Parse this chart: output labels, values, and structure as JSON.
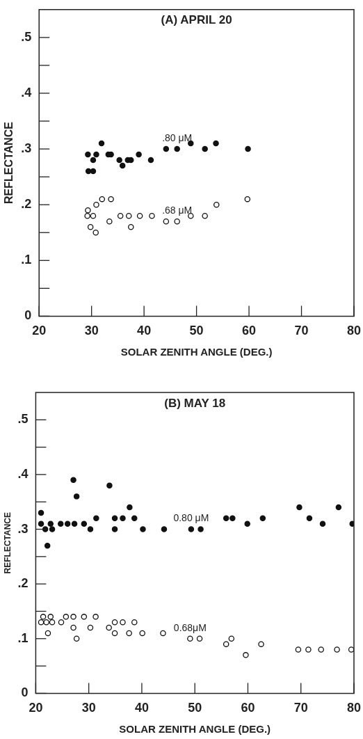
{
  "chart_data": [
    {
      "type": "scatter",
      "title": "(A) APRIL 20",
      "xlabel": "SOLAR ZENITH ANGLE (DEG.)",
      "ylabel": "REFLECTANCE",
      "marker": "circle",
      "grid": false,
      "legend": false,
      "xlim": [
        20,
        80
      ],
      "xticks": [
        20,
        30,
        40,
        50,
        60,
        70,
        80
      ],
      "ylim": [
        0,
        0.55
      ],
      "yticks": [
        0,
        {
          "value": 0.05,
          "label": null
        },
        {
          "value": 0.1,
          "label": ".1"
        },
        {
          "value": 0.15,
          "label": null
        },
        {
          "value": 0.2,
          "label": ".2"
        },
        {
          "value": 0.25,
          "label": null
        },
        {
          "value": 0.3,
          "label": ".3"
        },
        {
          "value": 0.35,
          "label": null
        },
        {
          "value": 0.4,
          "label": ".4"
        },
        {
          "value": 0.45,
          "label": null
        },
        {
          "value": 0.5,
          "label": ".5"
        }
      ],
      "series": [
        {
          "name": ".80 μM",
          "color": "#111111",
          "x": [
            29.3,
            29.4,
            30.3,
            30.3,
            30.9,
            31.9,
            33.2,
            33.7,
            35.3,
            35.9,
            36.9,
            37.5,
            39.0,
            41.3,
            44.2,
            46.3,
            48.9,
            51.6,
            53.7,
            59.8
          ],
          "values": [
            0.29,
            0.26,
            0.26,
            0.28,
            0.29,
            0.31,
            0.29,
            0.29,
            0.28,
            0.27,
            0.28,
            0.28,
            0.29,
            0.28,
            0.3,
            0.3,
            0.31,
            0.3,
            0.31,
            0.3
          ]
        },
        {
          "name": ".68 μM",
          "color": "#ffffff",
          "x": [
            29.3,
            29.2,
            30.3,
            29.8,
            30.8,
            30.9,
            32.0,
            33.7,
            33.4,
            35.5,
            37.1,
            37.5,
            39.2,
            41.5,
            44.2,
            46.3,
            48.9,
            51.6,
            53.8,
            59.7
          ],
          "values": [
            0.19,
            0.18,
            0.18,
            0.16,
            0.15,
            0.2,
            0.21,
            0.21,
            0.17,
            0.18,
            0.18,
            0.16,
            0.18,
            0.18,
            0.17,
            0.17,
            0.18,
            0.18,
            0.2,
            0.21
          ]
        }
      ]
    },
    {
      "type": "scatter",
      "title": "(B) MAY 18",
      "xlabel": "SOLAR ZENITH ANGLE (DEG.)",
      "ylabel": "REFLECTANCE",
      "marker": "circle",
      "grid": false,
      "legend": false,
      "xlim": [
        20,
        80
      ],
      "xticks": [
        20,
        30,
        40,
        50,
        60,
        70,
        80
      ],
      "ylim": [
        0,
        0.55
      ],
      "yticks": [
        0,
        {
          "value": 0.05,
          "label": null
        },
        {
          "value": 0.1,
          "label": ".1"
        },
        {
          "value": 0.15,
          "label": null
        },
        {
          "value": 0.2,
          "label": ".2"
        },
        {
          "value": 0.25,
          "label": null
        },
        {
          "value": 0.3,
          "label": ".3"
        },
        {
          "value": 0.35,
          "label": null
        },
        {
          "value": 0.4,
          "label": ".4"
        },
        {
          "value": 0.45,
          "label": null
        },
        {
          "value": 0.5,
          "label": ".5"
        }
      ],
      "series": [
        {
          "name": "0.80 μM",
          "color": "#111111",
          "x": [
            21.0,
            21.0,
            21.8,
            22.8,
            22.2,
            23.1,
            24.7,
            26.0,
            27.3,
            27.1,
            27.7,
            29.1,
            30.3,
            31.4,
            33.9,
            34.9,
            34.9,
            36.4,
            37.7,
            38.6,
            40.2,
            44.2,
            49.3,
            51.1,
            55.9,
            57.1,
            59.9,
            62.8,
            69.7,
            71.6,
            74.1,
            77.1,
            79.7
          ],
          "values": [
            0.33,
            0.31,
            0.3,
            0.31,
            0.27,
            0.3,
            0.31,
            0.31,
            0.31,
            0.39,
            0.36,
            0.31,
            0.3,
            0.32,
            0.38,
            0.32,
            0.3,
            0.32,
            0.34,
            0.32,
            0.3,
            0.3,
            0.3,
            0.3,
            0.32,
            0.32,
            0.31,
            0.32,
            0.34,
            0.32,
            0.31,
            0.34,
            0.31
          ]
        },
        {
          "name": "0.68μM",
          "color": "#ffffff",
          "x": [
            21.0,
            21.4,
            22.0,
            22.3,
            22.8,
            23.1,
            24.8,
            25.7,
            27.1,
            27.1,
            27.7,
            29.1,
            30.3,
            31.3,
            33.8,
            34.9,
            34.9,
            36.4,
            37.6,
            38.6,
            40.1,
            44.0,
            49.1,
            50.9,
            55.9,
            56.9,
            59.6,
            62.5,
            69.5,
            71.4,
            73.8,
            76.8,
            79.5
          ],
          "values": [
            0.13,
            0.14,
            0.13,
            0.11,
            0.14,
            0.13,
            0.13,
            0.14,
            0.14,
            0.12,
            0.1,
            0.14,
            0.12,
            0.14,
            0.12,
            0.13,
            0.11,
            0.13,
            0.11,
            0.13,
            0.11,
            0.11,
            0.1,
            0.1,
            0.09,
            0.1,
            0.07,
            0.09,
            0.08,
            0.08,
            0.08,
            0.08,
            0.08
          ]
        }
      ]
    }
  ]
}
